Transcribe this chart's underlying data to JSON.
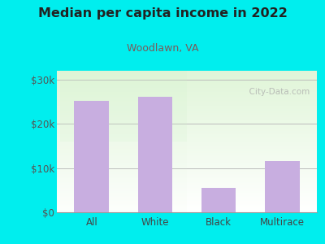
{
  "title": "Median per capita income in 2022",
  "subtitle": "Woodlawn, VA",
  "categories": [
    "All",
    "White",
    "Black",
    "Multirace"
  ],
  "values": [
    25200,
    26200,
    5500,
    11500
  ],
  "bar_color": "#c8aee0",
  "background_color": "#00eeee",
  "title_color": "#222222",
  "subtitle_color": "#7a5a5a",
  "tick_color": "#555555",
  "axis_label_color": "#444444",
  "ylim": [
    0,
    32000
  ],
  "yticks": [
    0,
    10000,
    20000,
    30000
  ],
  "ytick_labels": [
    "$0",
    "$10k",
    "$20k",
    "$30k"
  ],
  "watermark": "  City-Data.com",
  "title_fontsize": 11.5,
  "subtitle_fontsize": 9
}
